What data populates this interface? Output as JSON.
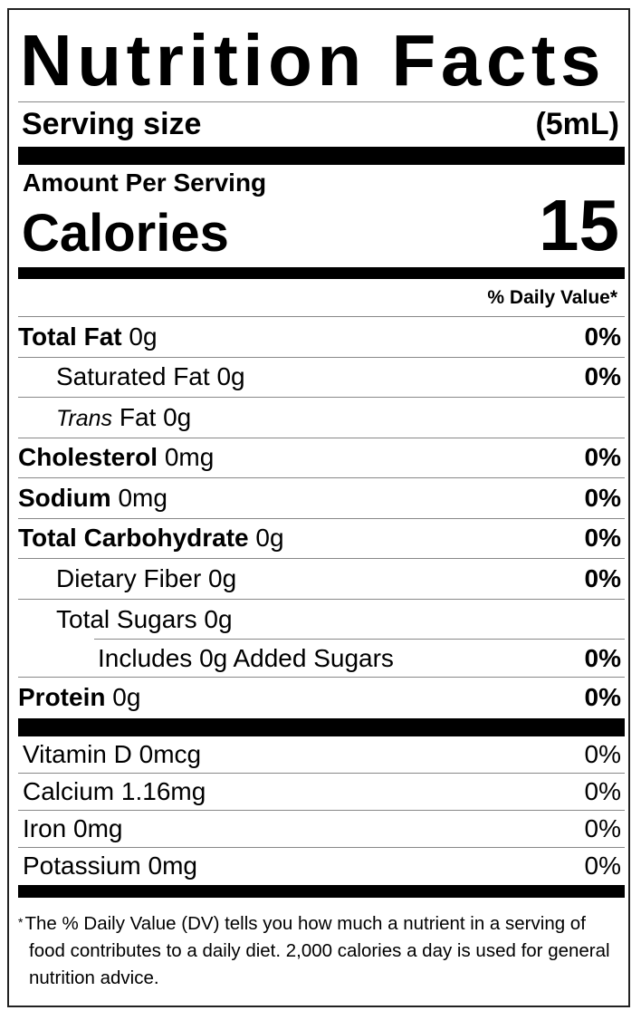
{
  "title": "Nutrition Facts",
  "serving": {
    "label": "Serving size",
    "value": "(5mL)"
  },
  "amount_per_serving": "Amount Per Serving",
  "calories": {
    "label": "Calories",
    "value": "15"
  },
  "daily_value_header": "% Daily Value*",
  "nutrients": [
    {
      "name": "Total Fat",
      "amount": "0g",
      "dv": "0%"
    },
    {
      "name": "Saturated Fat",
      "amount": "0g",
      "dv": "0%"
    },
    {
      "name_italic": "Trans",
      "name": "Fat",
      "amount": "0g",
      "dv": ""
    },
    {
      "name": "Cholesterol",
      "amount": "0mg",
      "dv": "0%"
    },
    {
      "name": "Sodium",
      "amount": "0mg",
      "dv": "0%"
    },
    {
      "name": "Total Carbohydrate",
      "amount": "0g",
      "dv": "0%"
    },
    {
      "name": "Dietary Fiber",
      "amount": "0g",
      "dv": "0%"
    },
    {
      "name": "Total Sugars",
      "amount": "0g",
      "dv": ""
    },
    {
      "name": "Includes 0g Added Sugars",
      "amount": "",
      "dv": "0%"
    },
    {
      "name": "Protein",
      "amount": "0g",
      "dv": "0%"
    }
  ],
  "vitamins": [
    {
      "label": "Vitamin D 0mcg",
      "dv": "0%"
    },
    {
      "label": "Calcium 1.16mg",
      "dv": "0%"
    },
    {
      "label": "Iron 0mg",
      "dv": "0%"
    },
    {
      "label": "Potassium 0mg",
      "dv": "0%"
    }
  ],
  "footnote": {
    "star": "*",
    "text": "The % Daily Value (DV) tells you how much a nutrient in a serving of food contributes to a daily diet. 2,000 calories a day is used for general nutrition advice."
  }
}
